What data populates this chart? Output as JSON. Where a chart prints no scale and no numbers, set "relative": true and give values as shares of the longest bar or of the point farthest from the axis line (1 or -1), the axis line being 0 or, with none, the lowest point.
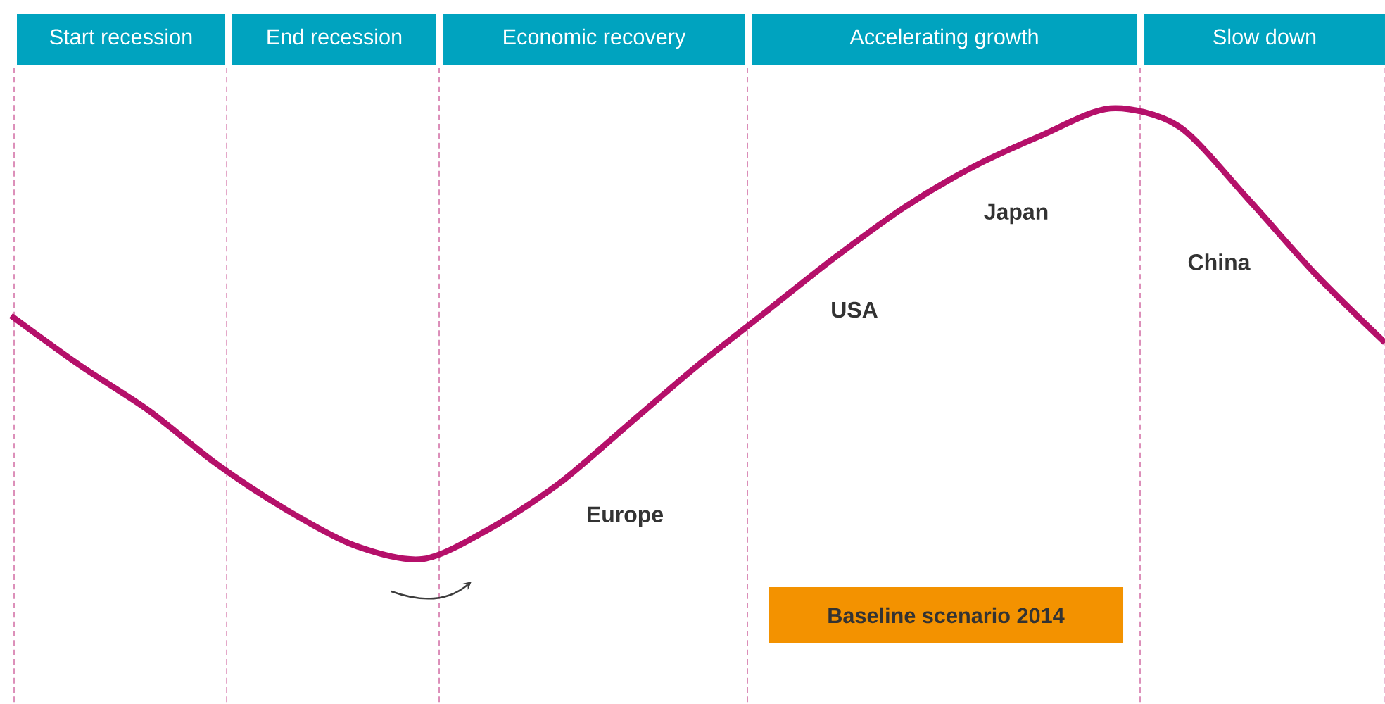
{
  "chart_data": {
    "type": "line",
    "relative": true,
    "color": "#b5106a",
    "categories": [
      null,
      null,
      null,
      null,
      null,
      null,
      null,
      null,
      null,
      null,
      null,
      null,
      null,
      null,
      null,
      null,
      null,
      null,
      null,
      null,
      null
    ],
    "values": [
      0.54,
      0.43,
      0.33,
      0.21,
      0.11,
      0.03,
      0,
      0.07,
      0.17,
      0.3,
      0.43,
      0.55,
      0.67,
      0.78,
      0.87,
      0.94,
      1,
      0.96,
      0.8,
      0.63,
      0.48
    ],
    "annotations": [
      "Start recession",
      "End recession",
      "Economic recovery",
      "Accelerating growth",
      "Slow down",
      "Europe",
      "USA",
      "Japan",
      "China",
      "Baseline scenario 2014"
    ]
  }
}
